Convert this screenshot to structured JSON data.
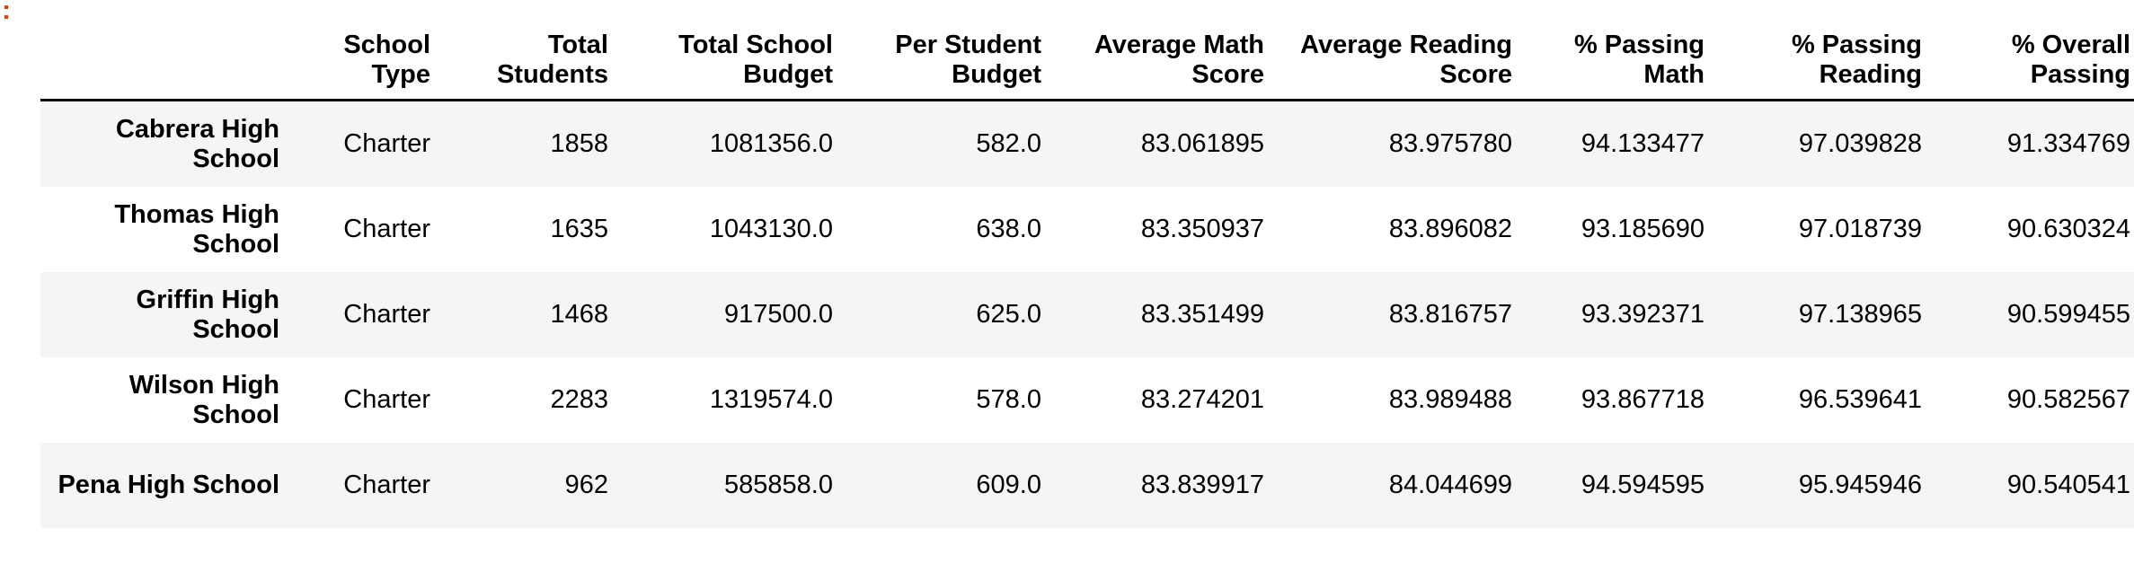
{
  "cell_marker": ":",
  "columns": [
    "",
    "School Type",
    "Total Students",
    "Total School Budget",
    "Per Student Budget",
    "Average Math Score",
    "Average Reading Score",
    "% Passing Math",
    "% Passing Reading",
    "% Overall Passing"
  ],
  "rows": [
    {
      "school": "Cabrera High School",
      "type": "Charter",
      "students": "1858",
      "budget": "1081356.0",
      "per_student": "582.0",
      "avg_math": "83.061895",
      "avg_reading": "83.975780",
      "pass_math": "94.133477",
      "pass_reading": "97.039828",
      "overall": "91.334769"
    },
    {
      "school": "Thomas High School",
      "type": "Charter",
      "students": "1635",
      "budget": "1043130.0",
      "per_student": "638.0",
      "avg_math": "83.350937",
      "avg_reading": "83.896082",
      "pass_math": "93.185690",
      "pass_reading": "97.018739",
      "overall": "90.630324"
    },
    {
      "school": "Griffin High School",
      "type": "Charter",
      "students": "1468",
      "budget": "917500.0",
      "per_student": "625.0",
      "avg_math": "83.351499",
      "avg_reading": "83.816757",
      "pass_math": "93.392371",
      "pass_reading": "97.138965",
      "overall": "90.599455"
    },
    {
      "school": "Wilson High School",
      "type": "Charter",
      "students": "2283",
      "budget": "1319574.0",
      "per_student": "578.0",
      "avg_math": "83.274201",
      "avg_reading": "83.989488",
      "pass_math": "93.867718",
      "pass_reading": "96.539641",
      "overall": "90.582567"
    },
    {
      "school": "Pena High School",
      "type": "Charter",
      "students": "962",
      "budget": "585858.0",
      "per_student": "609.0",
      "avg_math": "83.839917",
      "avg_reading": "84.044699",
      "pass_math": "94.594595",
      "pass_reading": "95.945946",
      "overall": "90.540541"
    }
  ]
}
